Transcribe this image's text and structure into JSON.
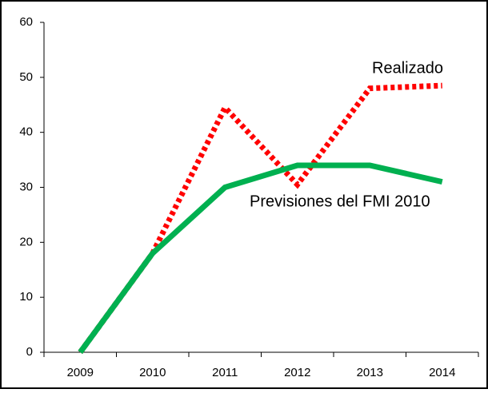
{
  "chart_data": {
    "type": "line",
    "categories": [
      "2009",
      "2010",
      "2011",
      "2012",
      "2013",
      "2014"
    ],
    "series": [
      {
        "name": "Realizado",
        "color": "#ff0000",
        "dash": true,
        "values": [
          0,
          18,
          44.5,
          30.5,
          48,
          48.5
        ]
      },
      {
        "name": "Previsiones del FMI 2010",
        "color": "#00b050",
        "dash": false,
        "values": [
          0,
          18,
          30,
          34,
          34,
          31
        ]
      }
    ],
    "ylim": [
      0,
      60
    ],
    "yticks": [
      0,
      10,
      20,
      30,
      40,
      50,
      60
    ],
    "grid": false
  }
}
